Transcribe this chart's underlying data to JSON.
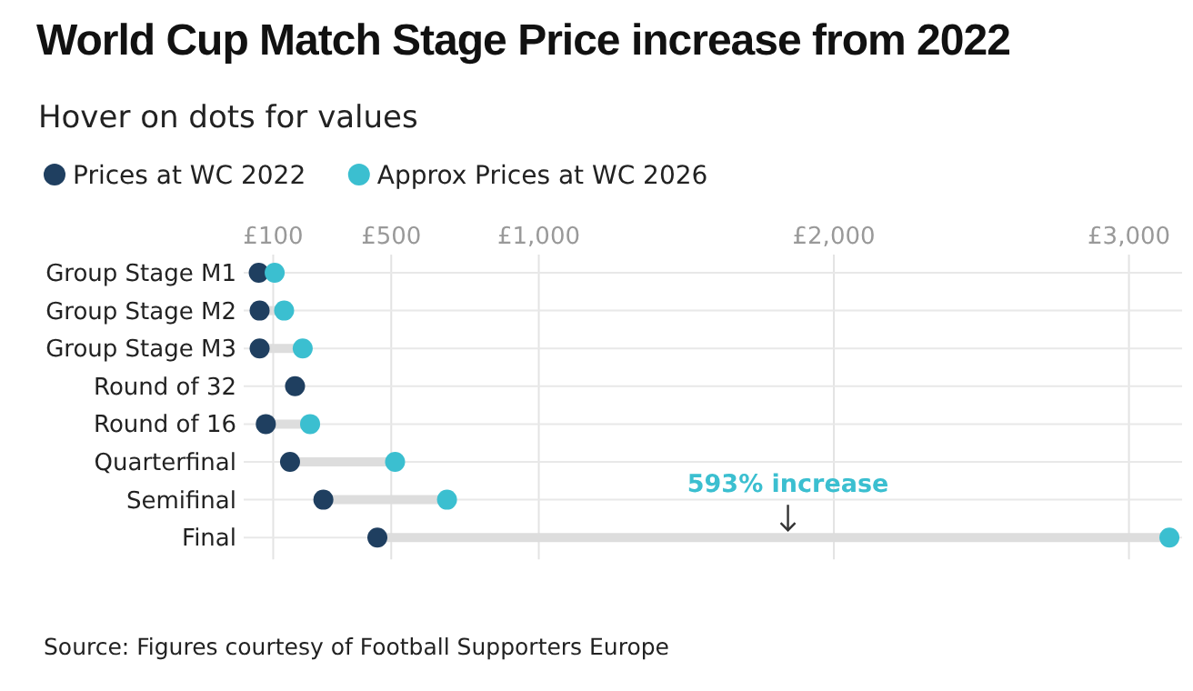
{
  "chart_data": {
    "type": "scatter",
    "orientation": "horizontal",
    "title": "World Cup Match Stage Price increase from 2022",
    "subtitle": "Hover on dots for values",
    "categories": [
      "Group Stage M1",
      "Group Stage M2",
      "Group Stage M3",
      "Round of 32",
      "Round of 16",
      "Quarterfinal",
      "Semifinal",
      "Final"
    ],
    "series": [
      {
        "name": "Prices at WC 2022",
        "color": "#1f3f60",
        "values": [
          51,
          54,
          54,
          174,
          75,
          157,
          270,
          453
        ]
      },
      {
        "name": "Approx Prices at WC 2026",
        "color": "#3bbfd0",
        "values": [
          105,
          137,
          200,
          null,
          225,
          513,
          689,
          3137
        ]
      }
    ],
    "xlim": [
      0,
      3180
    ],
    "xticks": [
      {
        "value": 100,
        "label": "£100"
      },
      {
        "value": 500,
        "label": "£500"
      },
      {
        "value": 1000,
        "label": "£1,000"
      },
      {
        "value": 2000,
        "label": "£2,000"
      },
      {
        "value": 3000,
        "label": "£3,000"
      }
    ],
    "grid": true,
    "legend": "top left",
    "marker": "circle",
    "annotations": [
      "593% increase",
      "Source: Figures courtesy of Football Supporters Europe"
    ]
  }
}
